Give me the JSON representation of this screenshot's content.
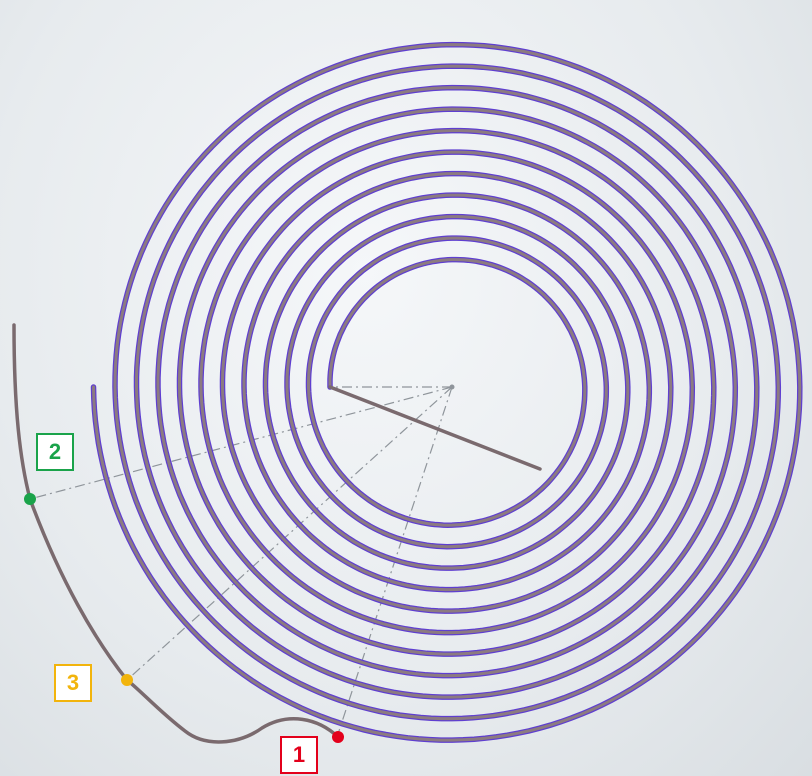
{
  "colors": {
    "background": "#e9edf0",
    "coil_outline": "#5f3fd0",
    "coil_fill": "#8c7b80",
    "wire": "#7a6a6e",
    "construction_line": "#8f959b",
    "point_1": "#e3001b",
    "point_2": "#1aa34a",
    "point_3": "#f2b40c"
  },
  "spiral": {
    "turns": 11,
    "shape": "archimedean-spiral"
  },
  "callouts": [
    {
      "id": "1",
      "label": "1",
      "color": "#e3001b"
    },
    {
      "id": "2",
      "label": "2",
      "color": "#1aa34a"
    },
    {
      "id": "3",
      "label": "3",
      "color": "#f2b40c"
    }
  ]
}
